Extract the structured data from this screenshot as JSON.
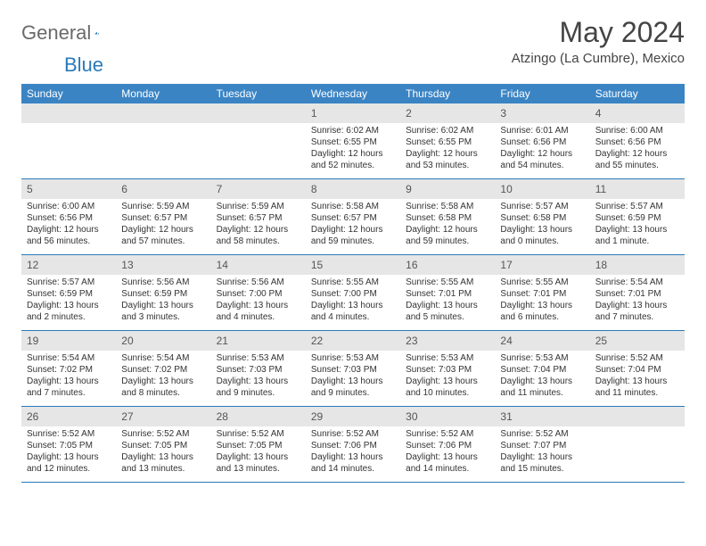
{
  "brand": {
    "general": "General",
    "blue": "Blue"
  },
  "title": "May 2024",
  "location": "Atzingo (La Cumbre), Mexico",
  "accent_color": "#3b84c4",
  "divider_color": "#2a7ab9",
  "header_bg": "#e6e6e6",
  "weekdays": [
    "Sunday",
    "Monday",
    "Tuesday",
    "Wednesday",
    "Thursday",
    "Friday",
    "Saturday"
  ],
  "weeks": [
    [
      null,
      null,
      null,
      {
        "n": "1",
        "sunrise": "6:02 AM",
        "sunset": "6:55 PM",
        "day": "12 hours and 52 minutes."
      },
      {
        "n": "2",
        "sunrise": "6:02 AM",
        "sunset": "6:55 PM",
        "day": "12 hours and 53 minutes."
      },
      {
        "n": "3",
        "sunrise": "6:01 AM",
        "sunset": "6:56 PM",
        "day": "12 hours and 54 minutes."
      },
      {
        "n": "4",
        "sunrise": "6:00 AM",
        "sunset": "6:56 PM",
        "day": "12 hours and 55 minutes."
      }
    ],
    [
      {
        "n": "5",
        "sunrise": "6:00 AM",
        "sunset": "6:56 PM",
        "day": "12 hours and 56 minutes."
      },
      {
        "n": "6",
        "sunrise": "5:59 AM",
        "sunset": "6:57 PM",
        "day": "12 hours and 57 minutes."
      },
      {
        "n": "7",
        "sunrise": "5:59 AM",
        "sunset": "6:57 PM",
        "day": "12 hours and 58 minutes."
      },
      {
        "n": "8",
        "sunrise": "5:58 AM",
        "sunset": "6:57 PM",
        "day": "12 hours and 59 minutes."
      },
      {
        "n": "9",
        "sunrise": "5:58 AM",
        "sunset": "6:58 PM",
        "day": "12 hours and 59 minutes."
      },
      {
        "n": "10",
        "sunrise": "5:57 AM",
        "sunset": "6:58 PM",
        "day": "13 hours and 0 minutes."
      },
      {
        "n": "11",
        "sunrise": "5:57 AM",
        "sunset": "6:59 PM",
        "day": "13 hours and 1 minute."
      }
    ],
    [
      {
        "n": "12",
        "sunrise": "5:57 AM",
        "sunset": "6:59 PM",
        "day": "13 hours and 2 minutes."
      },
      {
        "n": "13",
        "sunrise": "5:56 AM",
        "sunset": "6:59 PM",
        "day": "13 hours and 3 minutes."
      },
      {
        "n": "14",
        "sunrise": "5:56 AM",
        "sunset": "7:00 PM",
        "day": "13 hours and 4 minutes."
      },
      {
        "n": "15",
        "sunrise": "5:55 AM",
        "sunset": "7:00 PM",
        "day": "13 hours and 4 minutes."
      },
      {
        "n": "16",
        "sunrise": "5:55 AM",
        "sunset": "7:01 PM",
        "day": "13 hours and 5 minutes."
      },
      {
        "n": "17",
        "sunrise": "5:55 AM",
        "sunset": "7:01 PM",
        "day": "13 hours and 6 minutes."
      },
      {
        "n": "18",
        "sunrise": "5:54 AM",
        "sunset": "7:01 PM",
        "day": "13 hours and 7 minutes."
      }
    ],
    [
      {
        "n": "19",
        "sunrise": "5:54 AM",
        "sunset": "7:02 PM",
        "day": "13 hours and 7 minutes."
      },
      {
        "n": "20",
        "sunrise": "5:54 AM",
        "sunset": "7:02 PM",
        "day": "13 hours and 8 minutes."
      },
      {
        "n": "21",
        "sunrise": "5:53 AM",
        "sunset": "7:03 PM",
        "day": "13 hours and 9 minutes."
      },
      {
        "n": "22",
        "sunrise": "5:53 AM",
        "sunset": "7:03 PM",
        "day": "13 hours and 9 minutes."
      },
      {
        "n": "23",
        "sunrise": "5:53 AM",
        "sunset": "7:03 PM",
        "day": "13 hours and 10 minutes."
      },
      {
        "n": "24",
        "sunrise": "5:53 AM",
        "sunset": "7:04 PM",
        "day": "13 hours and 11 minutes."
      },
      {
        "n": "25",
        "sunrise": "5:52 AM",
        "sunset": "7:04 PM",
        "day": "13 hours and 11 minutes."
      }
    ],
    [
      {
        "n": "26",
        "sunrise": "5:52 AM",
        "sunset": "7:05 PM",
        "day": "13 hours and 12 minutes."
      },
      {
        "n": "27",
        "sunrise": "5:52 AM",
        "sunset": "7:05 PM",
        "day": "13 hours and 13 minutes."
      },
      {
        "n": "28",
        "sunrise": "5:52 AM",
        "sunset": "7:05 PM",
        "day": "13 hours and 13 minutes."
      },
      {
        "n": "29",
        "sunrise": "5:52 AM",
        "sunset": "7:06 PM",
        "day": "13 hours and 14 minutes."
      },
      {
        "n": "30",
        "sunrise": "5:52 AM",
        "sunset": "7:06 PM",
        "day": "13 hours and 14 minutes."
      },
      {
        "n": "31",
        "sunrise": "5:52 AM",
        "sunset": "7:07 PM",
        "day": "13 hours and 15 minutes."
      },
      null
    ]
  ],
  "labels": {
    "sunrise": "Sunrise:",
    "sunset": "Sunset:",
    "daylight": "Daylight:"
  }
}
